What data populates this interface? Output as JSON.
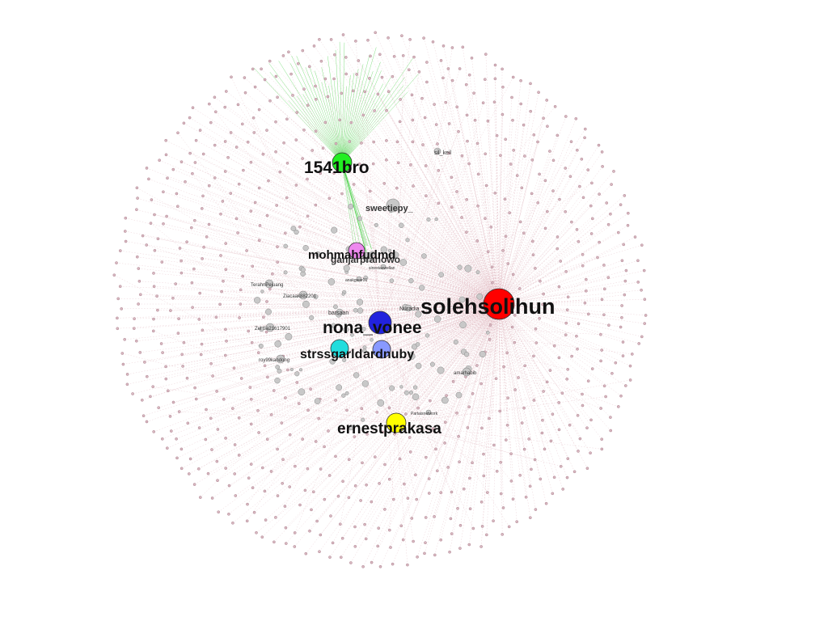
{
  "graph": {
    "background": "#ffffff",
    "edge_color": "#d9a6b0",
    "green_edge_color": "#33cc33",
    "minor_node_fill": "#c8c8c8",
    "minor_node_stroke": "#888888",
    "outer_node_fill": "#d8b8c0",
    "hubs": [
      {
        "label": "solehsolihun",
        "color": "#ff0000",
        "size": "large"
      },
      {
        "label": "1541bro",
        "color": "#22ee22",
        "size": "medium"
      },
      {
        "label": "nona_vonee",
        "color": "#2222dd",
        "size": "medium"
      },
      {
        "label": "ernestprakasa",
        "color": "#ffff00",
        "size": "medium"
      },
      {
        "label": "strssgarld",
        "color": "#22dddd",
        "size": "small"
      },
      {
        "label": "ardnuby",
        "color": "#8899ff",
        "size": "small"
      },
      {
        "label": "mohmahfudmd",
        "color": "#ee88ee",
        "size": "small"
      }
    ],
    "minor_labels": [
      "sweetiepy_",
      "ganjarpranowo",
      "sil_keil",
      "TerahnPejuang",
      "Ziacaak882201",
      "Zel Sa21617901",
      "roy99kandong",
      "anakgwar01",
      "Nuradia",
      "amarhabib",
      "Partaisnetwork",
      "sinestaswellan",
      "barsaan"
    ]
  }
}
